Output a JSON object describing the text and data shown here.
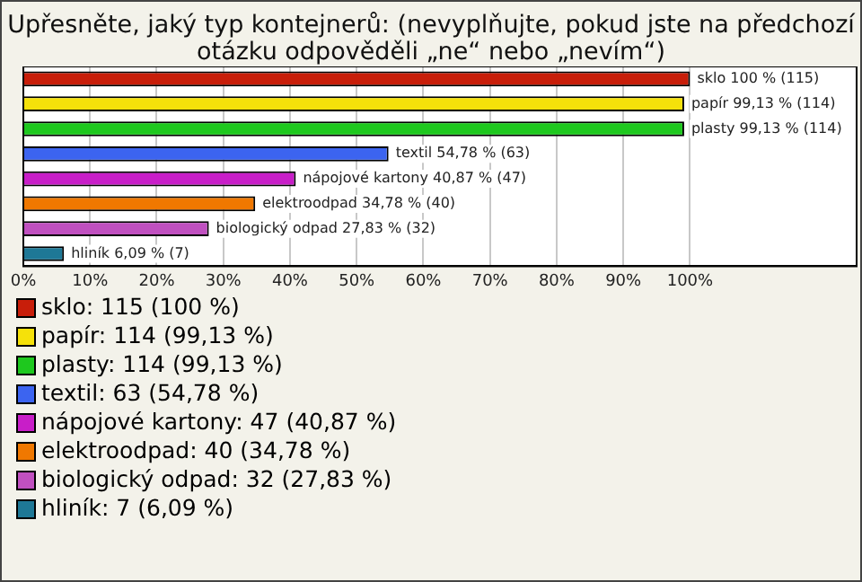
{
  "chart_data": {
    "type": "bar",
    "orientation": "horizontal",
    "title": "Upřesněte, jaký typ kontejnerů: (nevyplňujte, pokud jste na předchozí otázku odpověděli „ne“ nebo „nevím“)",
    "categories": [
      "sklo",
      "papír",
      "plasty",
      "textil",
      "nápojové kartony",
      "elektroodpad",
      "biologický odpad",
      "hliník"
    ],
    "values": [
      100,
      99.13,
      99.13,
      54.78,
      40.87,
      34.78,
      27.83,
      6.09
    ],
    "colors": [
      "#c81e0a",
      "#f5e10a",
      "#1ec81e",
      "#3c64f0",
      "#c81ec8",
      "#f07800",
      "#c050c0",
      "#1e7896"
    ],
    "value_labels": [
      "100 % (115)",
      "99,13 % (114)",
      "99,13 % (114)",
      "54,78 % (63)",
      "40,87 % (47)",
      "34,78 % (40)",
      "27,83 % (32)",
      "6,09 % (7)"
    ],
    "xlim": [
      0,
      125
    ],
    "xticks": [
      {
        "value": 0,
        "label": "0%"
      },
      {
        "value": 10,
        "label": "10%"
      },
      {
        "value": 20,
        "label": "20%"
      },
      {
        "value": 30,
        "label": "30%"
      },
      {
        "value": 40,
        "label": "40%"
      },
      {
        "value": 50,
        "label": "50%"
      },
      {
        "value": 60,
        "label": "60%"
      },
      {
        "value": 70,
        "label": "70%"
      },
      {
        "value": 80,
        "label": "80%"
      },
      {
        "value": 90,
        "label": "90%"
      },
      {
        "value": 100,
        "label": "100%"
      }
    ],
    "grid": "x",
    "tick_labels": "x",
    "annotations": [
      "sklo: 115 (100 %)",
      "papír: 114 (99,13 %)",
      "plasty: 114 (99,13 %)",
      "textil: 63 (54,78 %)",
      "nápojové kartony: 47 (40,87 %)",
      "elektroodpad: 40 (34,78 %)",
      "biologický odpad: 32 (27,83 %)",
      "hliník: 7 (6,09 %)"
    ]
  }
}
